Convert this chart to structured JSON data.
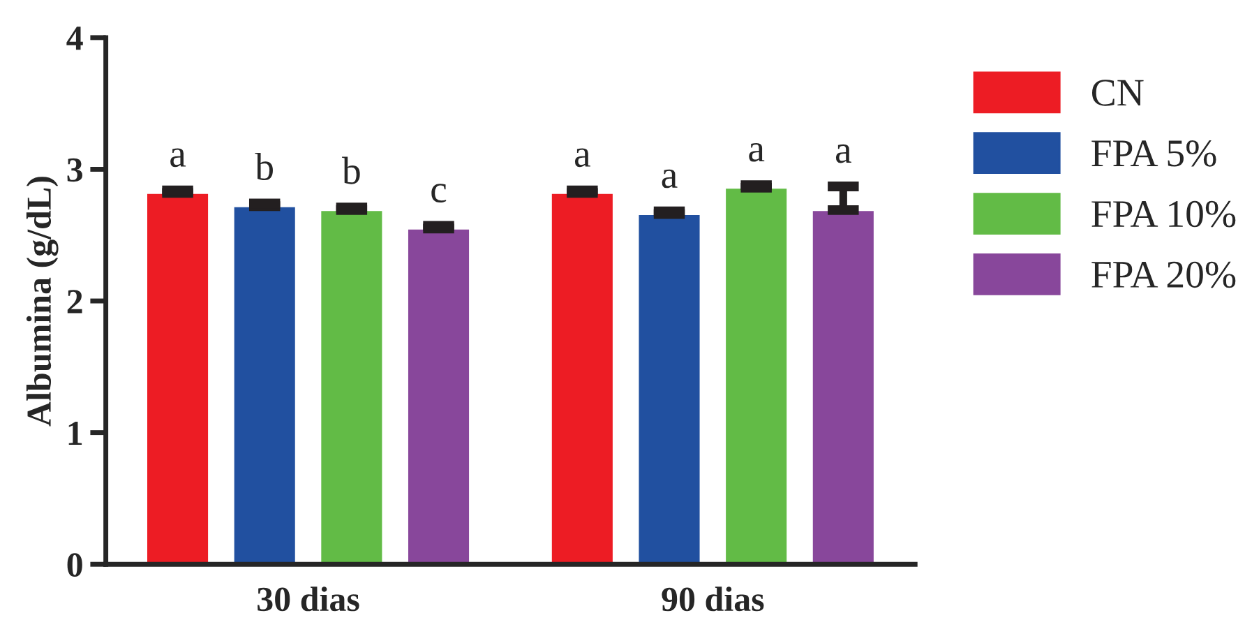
{
  "chart_data": {
    "type": "bar",
    "ylabel": "Albumina (g/dL)",
    "categories": [
      "30 dias",
      "90 dias"
    ],
    "series": [
      {
        "name": "CN",
        "color": "#ed1c24",
        "values": [
          2.82,
          2.82
        ],
        "errors": [
          0.02,
          0.02
        ],
        "value_labels": [
          "a",
          "a"
        ]
      },
      {
        "name": "FPA 5%",
        "color": "#2150a0",
        "values": [
          2.72,
          2.66
        ],
        "errors": [
          0.02,
          0.02
        ],
        "value_labels": [
          "b",
          "a"
        ]
      },
      {
        "name": "FPA 10%",
        "color": "#62bb46",
        "values": [
          2.69,
          2.86
        ],
        "errors": [
          0.02,
          0.02
        ],
        "value_labels": [
          "b",
          "a"
        ]
      },
      {
        "name": "FPA 20%",
        "color": "#88479b",
        "values": [
          2.55,
          2.69
        ],
        "errors": [
          0.02,
          0.18
        ],
        "value_labels": [
          "c",
          "a"
        ]
      }
    ],
    "ylim": [
      0,
      4
    ],
    "yticks": [
      0,
      1,
      2,
      3,
      4
    ],
    "grid": false,
    "legend": "top right"
  }
}
